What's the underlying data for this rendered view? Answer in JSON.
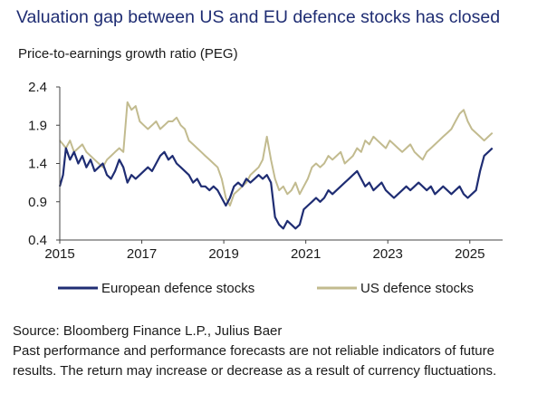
{
  "title": "Valuation gap between US and EU defence stocks has closed",
  "source": "Source: Bloomberg Finance L.P., Julius Baer",
  "disclaimer": "Past performance and performance forecasts are not reliable indicators of future results. The return may increase or decrease as a result of currency fluctuations.",
  "colors": {
    "title": "#1f2d73",
    "eu": "#1f2d73",
    "us": "#c2bb8f",
    "axis": "#444444"
  },
  "chart_data": {
    "type": "line",
    "ylabel": "Price-to-earnings growth ratio (PEG)",
    "xlabel": "",
    "xlim": [
      2015.0,
      2025.8
    ],
    "ylim": [
      0.4,
      2.4
    ],
    "yticks": [
      "2.4",
      "1.9",
      "1.4",
      "0.9",
      "0.4"
    ],
    "ytick_values": [
      2.4,
      1.9,
      1.4,
      0.9,
      0.4
    ],
    "xticks": [
      "2015",
      "2017",
      "2019",
      "2021",
      "2023",
      "2025"
    ],
    "xtick_values": [
      2015,
      2017,
      2019,
      2021,
      2023,
      2025
    ],
    "grid": false,
    "legend_position": "bottom",
    "series": [
      {
        "name": "European defence stocks",
        "color": "#1f2d73",
        "x": [
          2015.0,
          2015.08,
          2015.15,
          2015.25,
          2015.35,
          2015.45,
          2015.55,
          2015.65,
          2015.75,
          2015.85,
          2015.95,
          2016.05,
          2016.15,
          2016.25,
          2016.35,
          2016.45,
          2016.55,
          2016.65,
          2016.75,
          2016.85,
          2016.95,
          2017.05,
          2017.15,
          2017.25,
          2017.35,
          2017.45,
          2017.55,
          2017.65,
          2017.75,
          2017.85,
          2017.95,
          2018.05,
          2018.15,
          2018.25,
          2018.35,
          2018.45,
          2018.55,
          2018.65,
          2018.75,
          2018.85,
          2018.95,
          2019.05,
          2019.15,
          2019.25,
          2019.35,
          2019.45,
          2019.55,
          2019.65,
          2019.75,
          2019.85,
          2019.95,
          2020.05,
          2020.15,
          2020.25,
          2020.35,
          2020.45,
          2020.55,
          2020.65,
          2020.75,
          2020.85,
          2020.95,
          2021.05,
          2021.15,
          2021.25,
          2021.35,
          2021.45,
          2021.55,
          2021.65,
          2021.75,
          2021.85,
          2021.95,
          2022.05,
          2022.15,
          2022.25,
          2022.35,
          2022.45,
          2022.55,
          2022.65,
          2022.75,
          2022.85,
          2022.95,
          2023.05,
          2023.15,
          2023.25,
          2023.35,
          2023.45,
          2023.55,
          2023.65,
          2023.75,
          2023.85,
          2023.95,
          2024.05,
          2024.15,
          2024.25,
          2024.35,
          2024.45,
          2024.55,
          2024.65,
          2024.75,
          2024.85,
          2024.95,
          2025.05,
          2025.15,
          2025.25,
          2025.35,
          2025.45,
          2025.55
        ],
        "values": [
          1.1,
          1.25,
          1.6,
          1.45,
          1.55,
          1.4,
          1.5,
          1.35,
          1.45,
          1.3,
          1.35,
          1.4,
          1.25,
          1.2,
          1.3,
          1.45,
          1.35,
          1.15,
          1.25,
          1.2,
          1.25,
          1.3,
          1.35,
          1.3,
          1.4,
          1.5,
          1.55,
          1.45,
          1.5,
          1.4,
          1.35,
          1.3,
          1.25,
          1.15,
          1.2,
          1.1,
          1.1,
          1.05,
          1.1,
          1.05,
          0.95,
          0.85,
          0.95,
          1.1,
          1.15,
          1.1,
          1.2,
          1.15,
          1.2,
          1.25,
          1.2,
          1.25,
          1.15,
          0.7,
          0.6,
          0.55,
          0.65,
          0.6,
          0.55,
          0.6,
          0.8,
          0.85,
          0.9,
          0.95,
          0.9,
          0.95,
          1.05,
          1.0,
          1.05,
          1.1,
          1.15,
          1.2,
          1.25,
          1.3,
          1.2,
          1.1,
          1.15,
          1.05,
          1.1,
          1.15,
          1.05,
          1.0,
          0.95,
          1.0,
          1.05,
          1.1,
          1.05,
          1.1,
          1.15,
          1.1,
          1.05,
          1.1,
          1.0,
          1.05,
          1.1,
          1.05,
          1.0,
          1.05,
          1.1,
          1.0,
          0.95,
          1.0,
          1.05,
          1.3,
          1.5,
          1.55,
          1.6
        ]
      },
      {
        "name": "US defence stocks",
        "color": "#c2bb8f",
        "x": [
          2015.0,
          2015.08,
          2015.15,
          2015.25,
          2015.35,
          2015.45,
          2015.55,
          2015.65,
          2015.75,
          2015.85,
          2015.95,
          2016.05,
          2016.15,
          2016.25,
          2016.35,
          2016.45,
          2016.55,
          2016.65,
          2016.75,
          2016.85,
          2016.95,
          2017.05,
          2017.15,
          2017.25,
          2017.35,
          2017.45,
          2017.55,
          2017.65,
          2017.75,
          2017.85,
          2017.95,
          2018.05,
          2018.15,
          2018.25,
          2018.35,
          2018.45,
          2018.55,
          2018.65,
          2018.75,
          2018.85,
          2018.95,
          2019.05,
          2019.15,
          2019.25,
          2019.35,
          2019.45,
          2019.55,
          2019.65,
          2019.75,
          2019.85,
          2019.95,
          2020.05,
          2020.15,
          2020.25,
          2020.35,
          2020.45,
          2020.55,
          2020.65,
          2020.75,
          2020.85,
          2020.95,
          2021.05,
          2021.15,
          2021.25,
          2021.35,
          2021.45,
          2021.55,
          2021.65,
          2021.75,
          2021.85,
          2021.95,
          2022.05,
          2022.15,
          2022.25,
          2022.35,
          2022.45,
          2022.55,
          2022.65,
          2022.75,
          2022.85,
          2022.95,
          2023.05,
          2023.15,
          2023.25,
          2023.35,
          2023.45,
          2023.55,
          2023.65,
          2023.75,
          2023.85,
          2023.95,
          2024.05,
          2024.15,
          2024.25,
          2024.35,
          2024.45,
          2024.55,
          2024.65,
          2024.75,
          2024.85,
          2024.95,
          2025.05,
          2025.15,
          2025.25,
          2025.35,
          2025.45,
          2025.55
        ],
        "values": [
          1.7,
          1.65,
          1.6,
          1.7,
          1.55,
          1.6,
          1.65,
          1.55,
          1.5,
          1.45,
          1.4,
          1.35,
          1.45,
          1.5,
          1.55,
          1.6,
          1.55,
          2.2,
          2.1,
          2.15,
          1.95,
          1.9,
          1.85,
          1.9,
          1.95,
          1.85,
          1.9,
          1.95,
          1.95,
          2.0,
          1.9,
          1.85,
          1.7,
          1.65,
          1.6,
          1.55,
          1.5,
          1.45,
          1.4,
          1.35,
          1.2,
          0.95,
          0.85,
          1.0,
          1.05,
          1.1,
          1.15,
          1.25,
          1.3,
          1.35,
          1.45,
          1.75,
          1.45,
          1.2,
          1.05,
          1.1,
          1.0,
          1.05,
          1.15,
          1.0,
          1.1,
          1.2,
          1.35,
          1.4,
          1.35,
          1.4,
          1.5,
          1.45,
          1.5,
          1.55,
          1.4,
          1.45,
          1.5,
          1.6,
          1.55,
          1.7,
          1.65,
          1.75,
          1.7,
          1.65,
          1.6,
          1.7,
          1.65,
          1.6,
          1.55,
          1.6,
          1.65,
          1.55,
          1.5,
          1.45,
          1.55,
          1.6,
          1.65,
          1.7,
          1.75,
          1.8,
          1.85,
          1.95,
          2.05,
          2.1,
          1.95,
          1.85,
          1.8,
          1.75,
          1.7,
          1.75,
          1.8
        ]
      }
    ]
  }
}
